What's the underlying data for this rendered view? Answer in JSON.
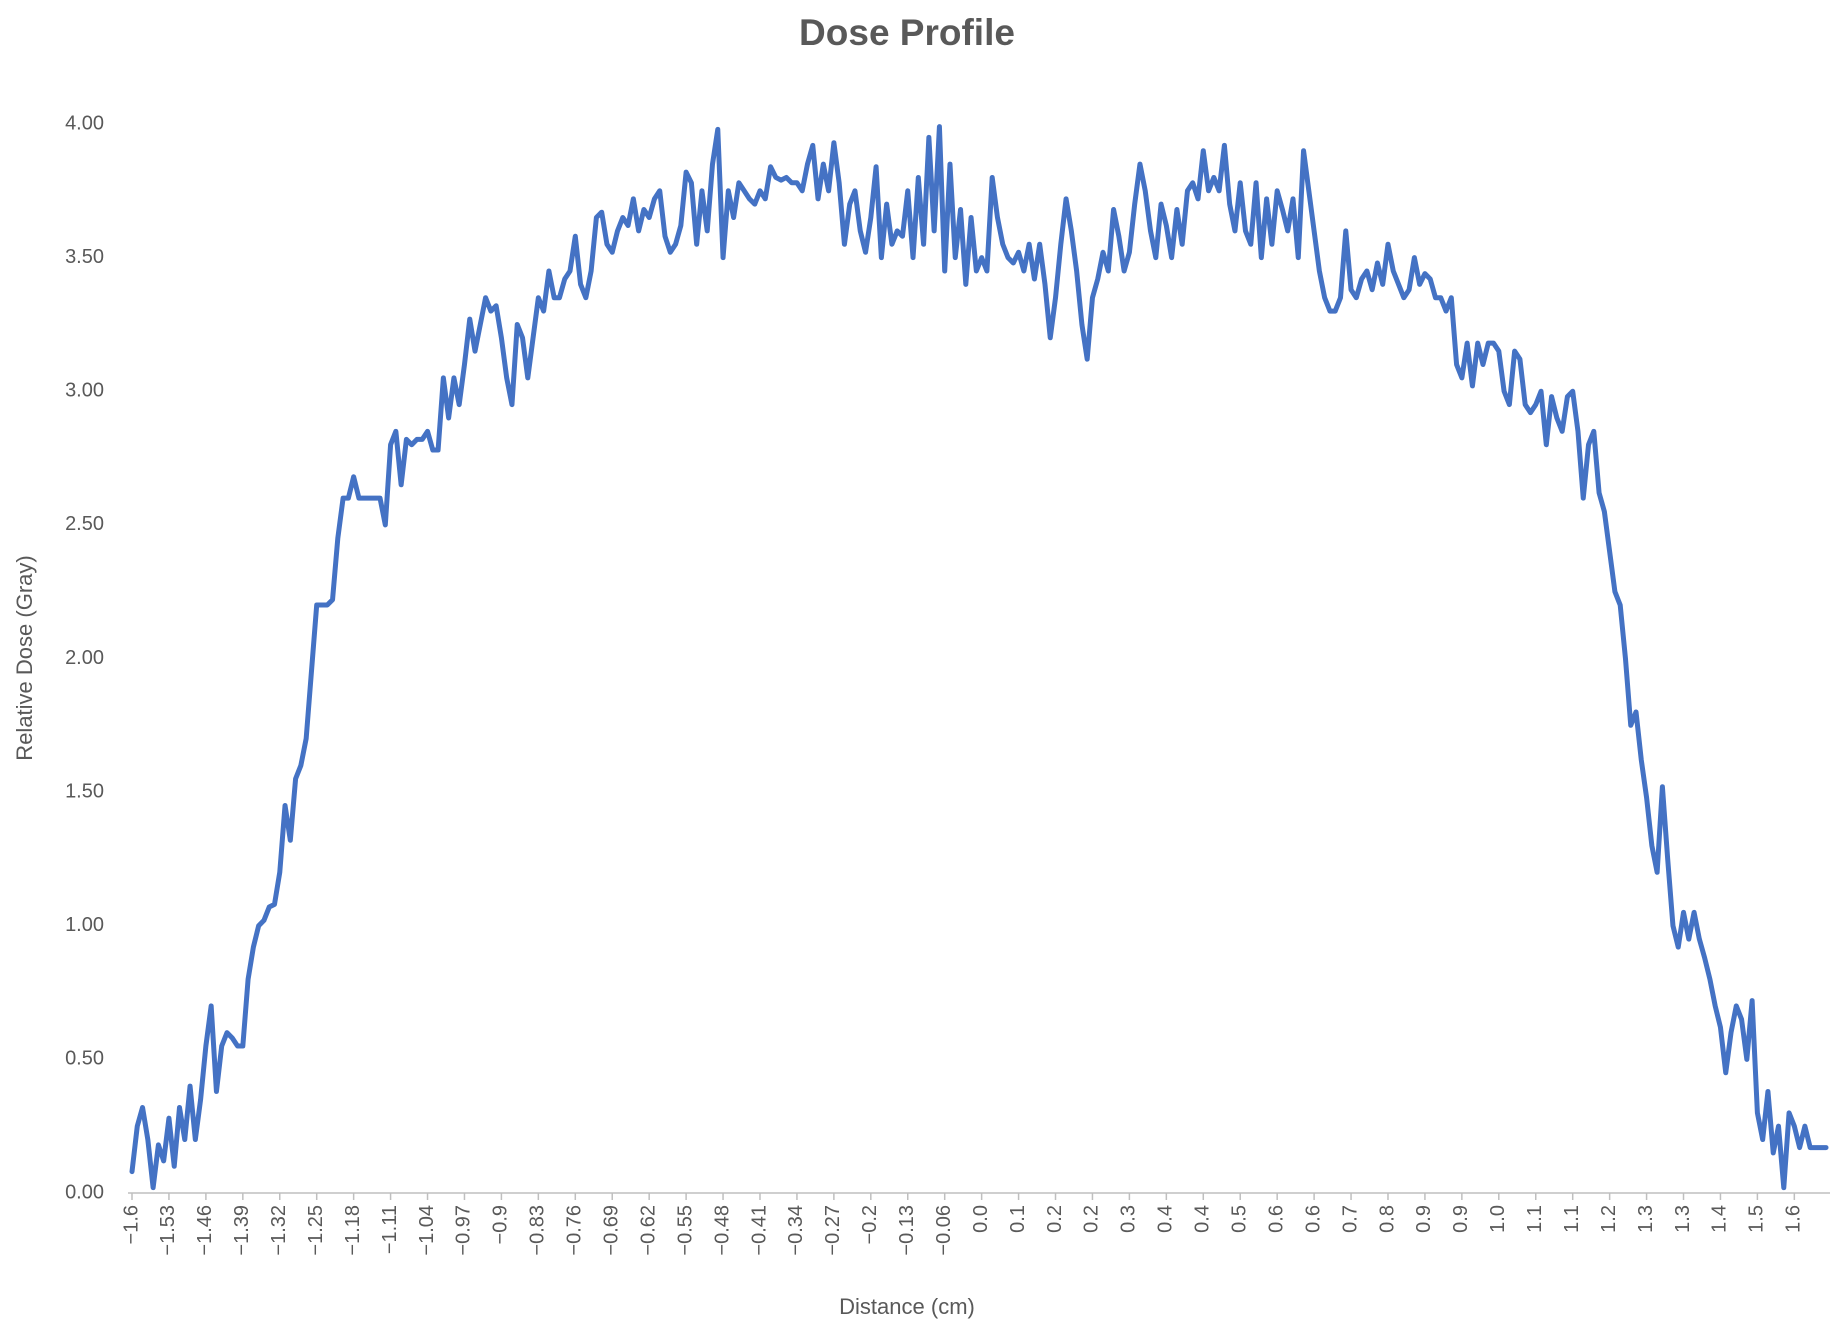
{
  "chart_data": {
    "type": "line",
    "title": "Dose Profile",
    "x_label": "Distance (cm)",
    "y_label": "Relative Dose (Gray)",
    "categories": [
      "−1.6",
      null,
      null,
      null,
      null,
      null,
      null,
      "−1.53",
      null,
      null,
      null,
      null,
      null,
      null,
      "−1.46",
      null,
      null,
      null,
      null,
      null,
      null,
      "−1.39",
      null,
      null,
      null,
      null,
      null,
      null,
      "−1.32",
      null,
      null,
      null,
      null,
      null,
      null,
      "−1.25",
      null,
      null,
      null,
      null,
      null,
      null,
      "−1.18",
      null,
      null,
      null,
      null,
      null,
      null,
      "−1.11",
      null,
      null,
      null,
      null,
      null,
      null,
      "−1.04",
      null,
      null,
      null,
      null,
      null,
      null,
      "−0.97",
      null,
      null,
      null,
      null,
      null,
      null,
      "−0.9",
      null,
      null,
      null,
      null,
      null,
      null,
      "−0.83",
      null,
      null,
      null,
      null,
      null,
      null,
      "−0.76",
      null,
      null,
      null,
      null,
      null,
      null,
      "−0.69",
      null,
      null,
      null,
      null,
      null,
      null,
      "−0.62",
      null,
      null,
      null,
      null,
      null,
      null,
      "−0.55",
      null,
      null,
      null,
      null,
      null,
      null,
      "−0.48",
      null,
      null,
      null,
      null,
      null,
      null,
      "−0.41",
      null,
      null,
      null,
      null,
      null,
      null,
      "−0.34",
      null,
      null,
      null,
      null,
      null,
      null,
      "−0.27",
      null,
      null,
      null,
      null,
      null,
      null,
      "−0.2",
      null,
      null,
      null,
      null,
      null,
      null,
      "−0.13",
      null,
      null,
      null,
      null,
      null,
      null,
      "−0.06",
      null,
      null,
      null,
      null,
      null,
      null,
      "0.0",
      null,
      null,
      null,
      null,
      null,
      null,
      "0.1",
      null,
      null,
      null,
      null,
      null,
      null,
      "0.2",
      null,
      null,
      null,
      null,
      null,
      null,
      "0.2",
      null,
      null,
      null,
      null,
      null,
      null,
      "0.3",
      null,
      null,
      null,
      null,
      null,
      null,
      "0.4",
      null,
      null,
      null,
      null,
      null,
      null,
      "0.4",
      null,
      null,
      null,
      null,
      null,
      null,
      "0.5",
      null,
      null,
      null,
      null,
      null,
      null,
      "0.6",
      null,
      null,
      null,
      null,
      null,
      null,
      "0.6",
      null,
      null,
      null,
      null,
      null,
      null,
      "0.7",
      null,
      null,
      null,
      null,
      null,
      null,
      "0.8",
      null,
      null,
      null,
      null,
      null,
      null,
      "0.9",
      null,
      null,
      null,
      null,
      null,
      null,
      "0.9",
      null,
      null,
      null,
      null,
      null,
      null,
      "1.0",
      null,
      null,
      null,
      null,
      null,
      null,
      "1.1",
      null,
      null,
      null,
      null,
      null,
      null,
      "1.1",
      null,
      null,
      null,
      null,
      null,
      null,
      "1.2",
      null,
      null,
      null,
      null,
      null,
      null,
      "1.3",
      null,
      null,
      null,
      null,
      null,
      null,
      "1.3",
      null,
      null,
      null,
      null,
      null,
      null,
      "1.4",
      null,
      null,
      null,
      null,
      null,
      null,
      "1.5",
      null,
      null,
      null,
      null,
      null,
      null,
      "1.6",
      null,
      null,
      null,
      null,
      null,
      null
    ],
    "series": [
      {
        "color": "#4472c4",
        "values": [
          0.08,
          0.25,
          0.32,
          0.2,
          0.02,
          0.18,
          0.12,
          0.28,
          0.1,
          0.32,
          0.2,
          0.4,
          0.2,
          0.35,
          0.55,
          0.7,
          0.38,
          0.55,
          0.6,
          0.58,
          0.55,
          0.55,
          0.8,
          0.92,
          1.0,
          1.02,
          1.07,
          1.08,
          1.2,
          1.45,
          1.32,
          1.55,
          1.6,
          1.7,
          1.95,
          2.2,
          2.2,
          2.2,
          2.22,
          2.45,
          2.6,
          2.6,
          2.68,
          2.6,
          2.6,
          2.6,
          2.6,
          2.6,
          2.5,
          2.8,
          2.85,
          2.65,
          2.82,
          2.8,
          2.82,
          2.82,
          2.85,
          2.78,
          2.78,
          3.05,
          2.9,
          3.05,
          2.95,
          3.1,
          3.27,
          3.15,
          3.25,
          3.35,
          3.3,
          3.32,
          3.2,
          3.05,
          2.95,
          3.25,
          3.2,
          3.05,
          3.2,
          3.35,
          3.3,
          3.45,
          3.35,
          3.35,
          3.42,
          3.45,
          3.58,
          3.4,
          3.35,
          3.45,
          3.65,
          3.67,
          3.55,
          3.52,
          3.6,
          3.65,
          3.62,
          3.72,
          3.6,
          3.68,
          3.65,
          3.72,
          3.75,
          3.58,
          3.52,
          3.55,
          3.62,
          3.82,
          3.78,
          3.55,
          3.75,
          3.6,
          3.85,
          3.98,
          3.5,
          3.75,
          3.65,
          3.78,
          3.75,
          3.72,
          3.7,
          3.75,
          3.72,
          3.84,
          3.8,
          3.79,
          3.8,
          3.78,
          3.78,
          3.75,
          3.85,
          3.92,
          3.72,
          3.85,
          3.75,
          3.93,
          3.78,
          3.55,
          3.7,
          3.75,
          3.6,
          3.52,
          3.65,
          3.84,
          3.5,
          3.7,
          3.55,
          3.6,
          3.58,
          3.75,
          3.5,
          3.8,
          3.55,
          3.95,
          3.6,
          3.99,
          3.45,
          3.85,
          3.5,
          3.68,
          3.4,
          3.65,
          3.45,
          3.5,
          3.45,
          3.8,
          3.65,
          3.55,
          3.5,
          3.48,
          3.52,
          3.45,
          3.55,
          3.42,
          3.55,
          3.4,
          3.2,
          3.35,
          3.55,
          3.72,
          3.6,
          3.45,
          3.25,
          3.12,
          3.35,
          3.42,
          3.52,
          3.45,
          3.68,
          3.58,
          3.45,
          3.52,
          3.7,
          3.85,
          3.75,
          3.6,
          3.5,
          3.7,
          3.62,
          3.5,
          3.68,
          3.55,
          3.75,
          3.78,
          3.72,
          3.9,
          3.75,
          3.8,
          3.75,
          3.92,
          3.7,
          3.6,
          3.78,
          3.6,
          3.55,
          3.78,
          3.5,
          3.72,
          3.55,
          3.75,
          3.68,
          3.6,
          3.72,
          3.5,
          3.9,
          3.75,
          3.6,
          3.45,
          3.35,
          3.3,
          3.3,
          3.35,
          3.6,
          3.38,
          3.35,
          3.42,
          3.45,
          3.38,
          3.48,
          3.4,
          3.55,
          3.45,
          3.4,
          3.35,
          3.38,
          3.5,
          3.4,
          3.44,
          3.42,
          3.35,
          3.35,
          3.3,
          3.35,
          3.1,
          3.05,
          3.18,
          3.02,
          3.18,
          3.1,
          3.18,
          3.18,
          3.15,
          3.0,
          2.95,
          3.15,
          3.12,
          2.95,
          2.92,
          2.95,
          3.0,
          2.8,
          2.98,
          2.9,
          2.85,
          2.98,
          3.0,
          2.85,
          2.6,
          2.8,
          2.85,
          2.62,
          2.55,
          2.4,
          2.25,
          2.2,
          2.0,
          1.75,
          1.8,
          1.62,
          1.48,
          1.3,
          1.2,
          1.52,
          1.25,
          1.0,
          0.92,
          1.05,
          0.95,
          1.05,
          0.95,
          0.88,
          0.8,
          0.7,
          0.62,
          0.45,
          0.6,
          0.7,
          0.65,
          0.5,
          0.72,
          0.3,
          0.2,
          0.38,
          0.15,
          0.25,
          0.02,
          0.3,
          0.25,
          0.17,
          0.25,
          0.17,
          0.17,
          0.17,
          0.17
        ]
      }
    ],
    "ylim": [
      0,
      4
    ],
    "yticks": [
      {
        "value": 0,
        "label": "0.00"
      },
      {
        "value": 0.5,
        "label": "0.50"
      },
      {
        "value": 1,
        "label": "1.00"
      },
      {
        "value": 1.5,
        "label": "1.50"
      },
      {
        "value": 2,
        "label": "2.00"
      },
      {
        "value": 2.5,
        "label": "2.50"
      },
      {
        "value": 3,
        "label": "3.00"
      },
      {
        "value": 3.5,
        "label": "3.50"
      },
      {
        "value": 4,
        "label": "4.00"
      }
    ],
    "grid": false
  }
}
